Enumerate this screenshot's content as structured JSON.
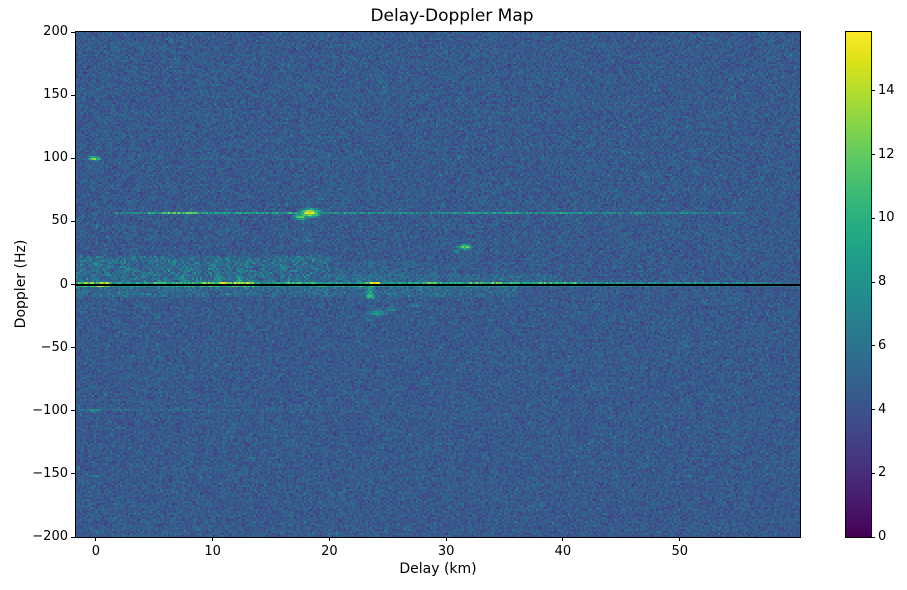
{
  "title": "Delay-Doppler Map",
  "chart_data": {
    "type": "heatmap",
    "title": "Delay-Doppler Map",
    "xlabel": "Delay (km)",
    "ylabel": "Doppler (Hz)",
    "xlim": [
      -1.7,
      60.3
    ],
    "ylim": [
      -200,
      200
    ],
    "x_ticks": [
      0,
      10,
      20,
      30,
      40,
      50
    ],
    "y_ticks": [
      200,
      150,
      100,
      50,
      0,
      -50,
      -100,
      -150,
      -200
    ],
    "grid_on": false,
    "colorbar": {
      "min": 0,
      "max": 15.85,
      "ticks": [
        0,
        2,
        4,
        6,
        8,
        10,
        12,
        14
      ]
    },
    "colormap": {
      "name": "viridis",
      "stops": [
        "#440154",
        "#48186a",
        "#472d7b",
        "#424086",
        "#3b528b",
        "#33638d",
        "#2c728e",
        "#26828e",
        "#21918c",
        "#1fa088",
        "#28ae80",
        "#3fbc73",
        "#5ec962",
        "#84d44b",
        "#addc30",
        "#d8e219",
        "#fde725"
      ]
    },
    "zero_line": {
      "doppler": 0,
      "color": "#000000"
    },
    "grid": {
      "nx": 362,
      "ny": 253
    },
    "noise": {
      "mean": 4.4,
      "sigma": 0.62,
      "min": 2.2,
      "max": 7.2,
      "seed": 42,
      "speck_prob": 0.03,
      "speck_boost": 1.2
    },
    "features": [
      {
        "type": "diffuse",
        "x0": -1.7,
        "x1": 20,
        "y0": 1,
        "y1": 22,
        "boost": 1.2,
        "speckle": 1.6
      },
      {
        "type": "diffuse",
        "x0": 20,
        "x1": 40,
        "y0": 1,
        "y1": 8,
        "boost": 0.9,
        "speckle": 1.2
      },
      {
        "type": "diffuse",
        "x0": -1.7,
        "x1": 36,
        "y0": -9,
        "y1": -1,
        "boost": 1.0,
        "speckle": 1.4
      },
      {
        "type": "diffuse",
        "x0": 20.5,
        "x1": 28.5,
        "y0": 3,
        "y1": 18,
        "boost": 0.6,
        "speckle": 0.9
      },
      {
        "type": "band",
        "doppler": 1.4,
        "half_height": 1.5,
        "segments": [
          [
            -1.7,
            0.3,
            12
          ],
          [
            0.3,
            1.2,
            14.5
          ],
          [
            1.2,
            5,
            8.5
          ],
          [
            5,
            6.5,
            11
          ],
          [
            6.5,
            9,
            9.5
          ],
          [
            9,
            10.5,
            12
          ],
          [
            10.5,
            13.5,
            13.5
          ],
          [
            13.5,
            16,
            8.5
          ],
          [
            16,
            19,
            10.5
          ],
          [
            19,
            23,
            8.5
          ],
          [
            23,
            24.2,
            14.5
          ],
          [
            24.2,
            28,
            9
          ],
          [
            28,
            29.5,
            11
          ],
          [
            29.5,
            32,
            9
          ],
          [
            32,
            36,
            11.5
          ],
          [
            36,
            38,
            9
          ],
          [
            38,
            41,
            10.5
          ],
          [
            41,
            46,
            8
          ],
          [
            46,
            52,
            7.5
          ],
          [
            52,
            57,
            7.2
          ],
          [
            57,
            60.3,
            6.2
          ]
        ]
      },
      {
        "type": "band",
        "doppler": -1.4,
        "half_height": 1.3,
        "segments": [
          [
            -1.7,
            0.3,
            11
          ],
          [
            0.3,
            1.2,
            13.5
          ],
          [
            1.2,
            6,
            8
          ],
          [
            6,
            9,
            9
          ],
          [
            9,
            13.5,
            10.5
          ],
          [
            13.5,
            19,
            8
          ],
          [
            19,
            24.2,
            9.5
          ],
          [
            24.2,
            30,
            7.5
          ],
          [
            30,
            36,
            8.5
          ],
          [
            36,
            42,
            7
          ],
          [
            42,
            50,
            6.2
          ],
          [
            50,
            60.3,
            5.6
          ]
        ]
      },
      {
        "type": "band",
        "doppler": 57,
        "half_height": 1.6,
        "segments": [
          [
            1.5,
            4.5,
            7.2
          ],
          [
            4.5,
            6,
            9.5
          ],
          [
            6,
            7,
            11
          ],
          [
            7,
            8.5,
            11.5
          ],
          [
            8.5,
            9.5,
            9.5
          ],
          [
            9.5,
            13,
            8.2
          ],
          [
            13,
            16.5,
            8.8
          ],
          [
            16.5,
            17.2,
            9
          ],
          [
            19.3,
            22,
            8.2
          ],
          [
            22,
            27,
            7.6
          ],
          [
            27,
            30,
            7.2
          ],
          [
            30,
            33.5,
            8.4
          ],
          [
            33.5,
            36,
            8.8
          ],
          [
            36,
            39.5,
            7.4
          ],
          [
            39.5,
            41.5,
            9
          ],
          [
            41.5,
            44,
            7.6
          ],
          [
            44,
            48,
            7
          ],
          [
            48,
            52,
            6.8
          ],
          [
            52,
            55.5,
            6.6
          ]
        ]
      },
      {
        "type": "band",
        "doppler": 17,
        "half_height": 0.8,
        "segments": [
          [
            20,
            31,
            5.4
          ]
        ]
      },
      {
        "type": "band",
        "doppler": 100,
        "half_height": 1.0,
        "segments": [
          [
            0.8,
            9.5,
            5.0
          ],
          [
            9.5,
            12.5,
            5.9
          ],
          [
            12.5,
            15.5,
            5.1
          ],
          [
            15.5,
            17.5,
            5.7
          ],
          [
            17.5,
            25,
            5.0
          ]
        ]
      },
      {
        "type": "band",
        "doppler": -100,
        "half_height": 1.0,
        "segments": [
          [
            -1.5,
            1.5,
            6.8
          ],
          [
            1.5,
            14,
            6.0
          ],
          [
            14,
            24,
            5.5
          ]
        ]
      },
      {
        "type": "vstreak",
        "delay": 6.0,
        "y0": 2,
        "y1": 16,
        "intensity": 7.5,
        "width": 0.45
      },
      {
        "type": "vstreak",
        "delay": 7.6,
        "y0": 2,
        "y1": 24,
        "intensity": 8.2,
        "width": 0.5
      },
      {
        "type": "vstreak",
        "delay": 10.4,
        "y0": 2,
        "y1": 27,
        "intensity": 8.8,
        "width": 0.55
      },
      {
        "type": "vstreak",
        "delay": 12.3,
        "y0": 2,
        "y1": 25,
        "intensity": 9.2,
        "width": 0.6
      },
      {
        "type": "vstreak",
        "delay": 13.2,
        "y0": 2,
        "y1": 18,
        "intensity": 8.0,
        "width": 0.45
      },
      {
        "type": "vstreak",
        "delay": 23.45,
        "y0": -11,
        "y1": 14,
        "intensity": 11.0,
        "width": 0.5
      },
      {
        "type": "vstreak",
        "delay": 23.55,
        "y0": 14,
        "y1": 36,
        "intensity": 6.4,
        "width": 0.5
      },
      {
        "type": "vstreak",
        "delay": 18.1,
        "y0": 35,
        "y1": 50,
        "intensity": 6.2,
        "width": 0.7
      },
      {
        "type": "vstreak",
        "delay": 18.1,
        "y0": 62,
        "y1": 80,
        "intensity": 6.0,
        "width": 0.7
      },
      {
        "type": "blob",
        "delay": 17.55,
        "doppler": 54,
        "w": 0.9,
        "h": 3.5,
        "intensity": 12.0,
        "angle": 25
      },
      {
        "type": "blob",
        "delay": 18.35,
        "doppler": 57,
        "w": 1.1,
        "h": 4.5,
        "intensity": 15.8,
        "angle": 20
      },
      {
        "type": "blob",
        "delay": 31.6,
        "doppler": 30,
        "w": 0.9,
        "h": 3.0,
        "intensity": 12.0,
        "angle": 25
      },
      {
        "type": "blob",
        "delay": 30.9,
        "doppler": 26.5,
        "w": 0.6,
        "h": 2.5,
        "intensity": 8.0,
        "angle": 25
      },
      {
        "type": "blob",
        "delay": -0.1,
        "doppler": 100,
        "w": 0.8,
        "h": 2.5,
        "intensity": 12.5,
        "angle": 0
      },
      {
        "type": "blob",
        "delay": -0.2,
        "doppler": -100,
        "w": 0.7,
        "h": 2.0,
        "intensity": 9.5,
        "angle": 0
      },
      {
        "type": "blob",
        "delay": 0.0,
        "doppler": -152,
        "w": 0.8,
        "h": 2.0,
        "intensity": 6.8,
        "angle": 0
      },
      {
        "type": "blob",
        "delay": 24.1,
        "doppler": -23,
        "w": 1.3,
        "h": 4.0,
        "intensity": 8.6,
        "angle": -20
      },
      {
        "type": "blob",
        "delay": 25.4,
        "doppler": -20,
        "w": 1.0,
        "h": 3.0,
        "intensity": 7.4,
        "angle": -15
      },
      {
        "type": "blob",
        "delay": 27.4,
        "doppler": -17,
        "w": 1.4,
        "h": 2.5,
        "intensity": 7.0,
        "angle": 0
      },
      {
        "type": "blob",
        "delay": 23.3,
        "doppler": -28,
        "w": 0.8,
        "h": 2.5,
        "intensity": 6.6,
        "angle": 0
      }
    ]
  }
}
